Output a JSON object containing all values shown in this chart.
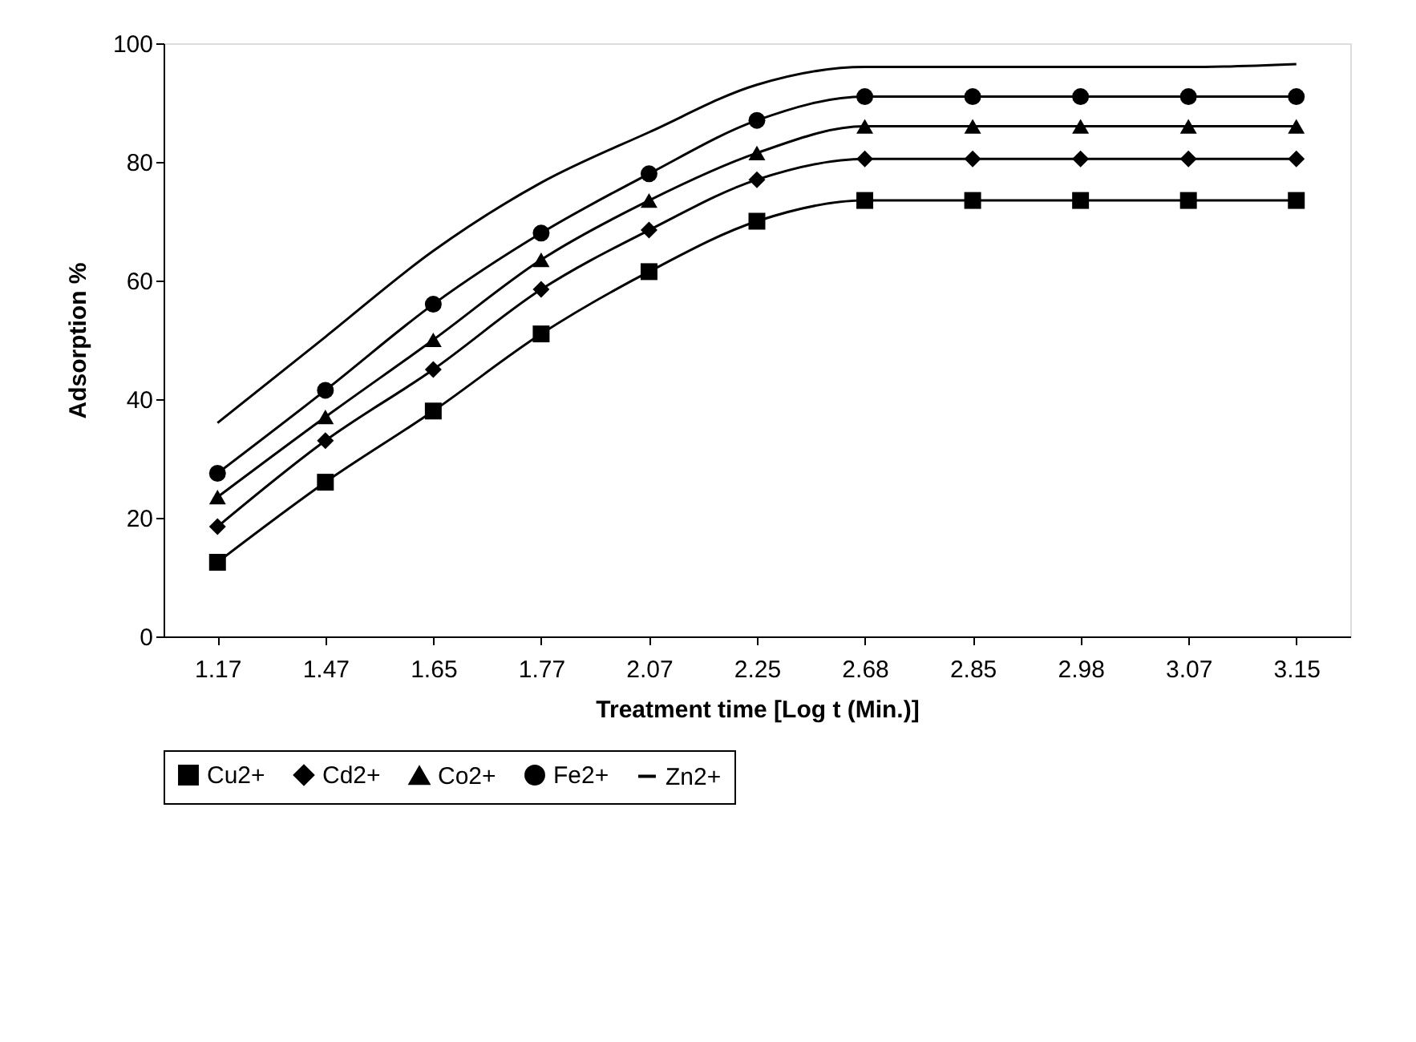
{
  "chart_data": {
    "type": "line",
    "xlabel": "Treatment time [Log t (Min.)]",
    "ylabel": "Adsorption %",
    "categories": [
      "1.17",
      "1.47",
      "1.65",
      "1.77",
      "2.07",
      "2.25",
      "2.68",
      "2.85",
      "2.98",
      "3.07",
      "3.15"
    ],
    "ylim": [
      0,
      100
    ],
    "yticks": [
      0,
      20,
      40,
      60,
      80,
      100
    ],
    "grid": false,
    "legend": "bottom",
    "series": [
      {
        "name": "Cu2+",
        "color": "#000000",
        "marker": "square",
        "values": [
          12.5,
          26,
          38,
          51,
          61.5,
          70,
          73.5,
          73.5,
          73.5,
          73.5,
          73.5
        ]
      },
      {
        "name": "Cd2+",
        "color": "#000000",
        "marker": "diamond",
        "values": [
          18.5,
          33,
          45,
          58.5,
          68.5,
          77,
          80.5,
          80.5,
          80.5,
          80.5,
          80.5
        ]
      },
      {
        "name": "Co2+",
        "color": "#000000",
        "marker": "triangle",
        "values": [
          23.5,
          37,
          50,
          63.5,
          73.5,
          81.5,
          86,
          86,
          86,
          86,
          86
        ]
      },
      {
        "name": "Fe2+",
        "color": "#000000",
        "marker": "circle",
        "values": [
          27.5,
          41.5,
          56,
          68,
          78,
          87,
          91,
          91,
          91,
          91,
          91
        ]
      },
      {
        "name": "Zn2+",
        "color": "#000000",
        "marker": "none",
        "values": [
          36,
          50.5,
          65,
          76.5,
          85,
          93,
          96,
          96,
          96,
          96,
          96.5
        ]
      }
    ]
  }
}
